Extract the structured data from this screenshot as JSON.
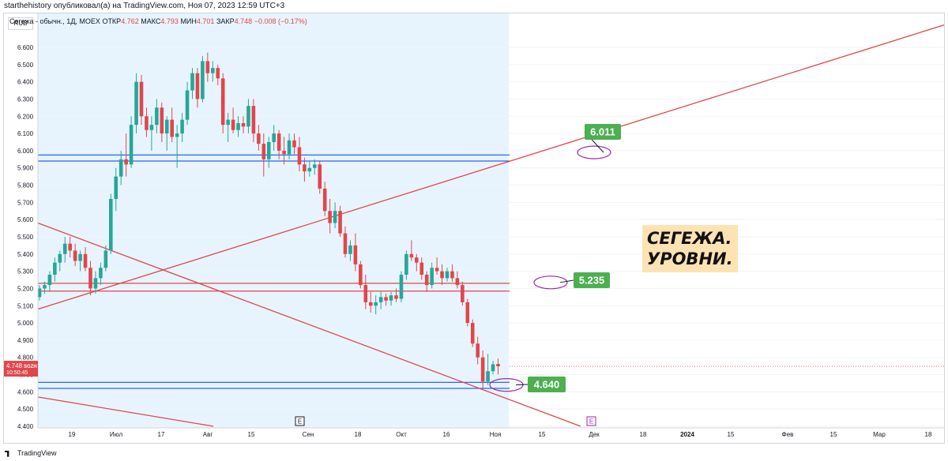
{
  "header": {
    "publisher": "starthehistory опубликовал(а) на TradingView.com, Ноя 07, 2023 12:59 UTC+3"
  },
  "legend": {
    "symbol": "Сегежа - обычн., 1Д, MOEX",
    "open_label": "ОТКР",
    "open": "4.762",
    "high_label": "МАКС",
    "high": "4.793",
    "low_label": "МИН",
    "low": "4.701",
    "close_label": "ЗАКР",
    "close": "4.748",
    "change": "−0.008 (−0.17%)"
  },
  "currency": "RUB",
  "footer": {
    "brand": "TradingView"
  },
  "overlay": {
    "line1": "СЕГЕЖА.",
    "line2": "УРОВНИ."
  },
  "colors": {
    "up": "#26a69a",
    "down": "#e0464c",
    "trendline": "#e0464c",
    "level_blue": "#2962ff",
    "level_red": "#e0464c",
    "label_green": "#4caf50",
    "shade": "#e3f2fd",
    "marker": "#9c27b0"
  },
  "chart_data": {
    "type": "candlestick",
    "currency": "RUB",
    "ylim": [
      4.4,
      6.7
    ],
    "y_ticks": [
      "6.600",
      "6.500",
      "6.400",
      "6.300",
      "6.200",
      "6.100",
      "6.000",
      "5.900",
      "5.800",
      "5.700",
      "5.600",
      "5.500",
      "5.400",
      "5.300",
      "5.200",
      "5.100",
      "5.000",
      "4.900",
      "4.800",
      "4.700",
      "4.600",
      "4.500",
      "4.400"
    ],
    "x_ticks": [
      "19",
      "Июл",
      "17",
      "Авг",
      "15",
      "Сен",
      "18",
      "Окт",
      "16",
      "Ноя",
      "15",
      "Дек",
      "18",
      "2024",
      "15",
      "Фев",
      "15",
      "Мар",
      "18"
    ],
    "price_label": {
      "value": "4.748",
      "ticker": "SGZH",
      "time": "10:50:45"
    },
    "level_labels": [
      "6.011",
      "5.235",
      "4.640"
    ],
    "horizontal_levels": [
      {
        "price": 5.975,
        "color": "blue"
      },
      {
        "price": 5.94,
        "color": "blue"
      },
      {
        "price": 5.23,
        "color": "red"
      },
      {
        "price": 5.185,
        "color": "red"
      },
      {
        "price": 4.655,
        "color": "blue"
      },
      {
        "price": 4.62,
        "color": "blue"
      }
    ],
    "event_markers": [
      "E",
      "E"
    ],
    "ohlc": [
      [
        5.15,
        5.22,
        5.13,
        5.2
      ],
      [
        5.2,
        5.24,
        5.17,
        5.22
      ],
      [
        5.22,
        5.3,
        5.18,
        5.28
      ],
      [
        5.28,
        5.38,
        5.24,
        5.35
      ],
      [
        5.35,
        5.42,
        5.3,
        5.4
      ],
      [
        5.4,
        5.5,
        5.35,
        5.46
      ],
      [
        5.46,
        5.5,
        5.38,
        5.42
      ],
      [
        5.42,
        5.46,
        5.33,
        5.36
      ],
      [
        5.36,
        5.42,
        5.3,
        5.4
      ],
      [
        5.4,
        5.44,
        5.3,
        5.32
      ],
      [
        5.32,
        5.36,
        5.16,
        5.2
      ],
      [
        5.2,
        5.3,
        5.17,
        5.26
      ],
      [
        5.26,
        5.35,
        5.22,
        5.32
      ],
      [
        5.32,
        5.45,
        5.3,
        5.42
      ],
      [
        5.42,
        5.75,
        5.4,
        5.72
      ],
      [
        5.72,
        5.9,
        5.65,
        5.85
      ],
      [
        5.85,
        6.0,
        5.8,
        5.95
      ],
      [
        5.95,
        6.1,
        5.85,
        5.92
      ],
      [
        5.92,
        6.2,
        5.9,
        6.15
      ],
      [
        6.15,
        6.45,
        6.1,
        6.4
      ],
      [
        6.4,
        6.44,
        6.15,
        6.2
      ],
      [
        6.2,
        6.25,
        6.08,
        6.12
      ],
      [
        6.12,
        6.2,
        6.0,
        6.15
      ],
      [
        6.15,
        6.3,
        6.1,
        6.25
      ],
      [
        6.25,
        6.28,
        6.05,
        6.1
      ],
      [
        6.1,
        6.2,
        6.0,
        6.18
      ],
      [
        6.18,
        6.25,
        6.05,
        6.08
      ],
      [
        6.08,
        6.15,
        5.9,
        6.1
      ],
      [
        6.1,
        6.22,
        6.05,
        6.18
      ],
      [
        6.18,
        6.4,
        6.15,
        6.35
      ],
      [
        6.35,
        6.48,
        6.3,
        6.45
      ],
      [
        6.45,
        6.48,
        6.25,
        6.3
      ],
      [
        6.3,
        6.55,
        6.28,
        6.52
      ],
      [
        6.52,
        6.57,
        6.4,
        6.45
      ],
      [
        6.45,
        6.52,
        6.4,
        6.48
      ],
      [
        6.48,
        6.5,
        6.38,
        6.42
      ],
      [
        6.42,
        6.45,
        6.1,
        6.15
      ],
      [
        6.15,
        6.22,
        6.05,
        6.18
      ],
      [
        6.18,
        6.25,
        6.1,
        6.12
      ],
      [
        6.12,
        6.2,
        6.08,
        6.16
      ],
      [
        6.16,
        6.2,
        6.1,
        6.14
      ],
      [
        6.14,
        6.3,
        6.1,
        6.26
      ],
      [
        6.26,
        6.3,
        6.05,
        6.1
      ],
      [
        6.1,
        6.15,
        6.0,
        6.04
      ],
      [
        6.04,
        6.1,
        5.85,
        5.95
      ],
      [
        5.95,
        6.08,
        5.9,
        6.05
      ],
      [
        6.05,
        6.15,
        6.0,
        6.1
      ],
      [
        6.1,
        6.12,
        5.95,
        6.0
      ],
      [
        6.0,
        6.08,
        5.92,
        5.98
      ],
      [
        5.98,
        6.1,
        5.95,
        6.06
      ],
      [
        6.06,
        6.1,
        5.98,
        6.02
      ],
      [
        6.02,
        6.08,
        5.88,
        5.92
      ],
      [
        5.92,
        5.96,
        5.82,
        5.88
      ],
      [
        5.88,
        5.94,
        5.85,
        5.9
      ],
      [
        5.9,
        5.95,
        5.86,
        5.92
      ],
      [
        5.92,
        5.94,
        5.75,
        5.78
      ],
      [
        5.78,
        5.82,
        5.62,
        5.65
      ],
      [
        5.65,
        5.72,
        5.52,
        5.58
      ],
      [
        5.58,
        5.7,
        5.55,
        5.65
      ],
      [
        5.65,
        5.68,
        5.5,
        5.52
      ],
      [
        5.52,
        5.56,
        5.38,
        5.4
      ],
      [
        5.4,
        5.48,
        5.36,
        5.45
      ],
      [
        5.45,
        5.52,
        5.3,
        5.34
      ],
      [
        5.34,
        5.36,
        5.2,
        5.22
      ],
      [
        5.22,
        5.28,
        5.08,
        5.12
      ],
      [
        5.12,
        5.18,
        5.06,
        5.1
      ],
      [
        5.1,
        5.16,
        5.05,
        5.12
      ],
      [
        5.12,
        5.18,
        5.08,
        5.15
      ],
      [
        5.15,
        5.17,
        5.1,
        5.13
      ],
      [
        5.13,
        5.18,
        5.1,
        5.16
      ],
      [
        5.16,
        5.2,
        5.12,
        5.14
      ],
      [
        5.14,
        5.3,
        5.12,
        5.28
      ],
      [
        5.28,
        5.42,
        5.25,
        5.4
      ],
      [
        5.4,
        5.48,
        5.36,
        5.38
      ],
      [
        5.38,
        5.4,
        5.3,
        5.35
      ],
      [
        5.35,
        5.38,
        5.25,
        5.28
      ],
      [
        5.28,
        5.3,
        5.18,
        5.22
      ],
      [
        5.22,
        5.35,
        5.2,
        5.32
      ],
      [
        5.32,
        5.38,
        5.28,
        5.3
      ],
      [
        5.3,
        5.34,
        5.22,
        5.26
      ],
      [
        5.26,
        5.32,
        5.24,
        5.3
      ],
      [
        5.3,
        5.34,
        5.24,
        5.26
      ],
      [
        5.26,
        5.3,
        5.2,
        5.22
      ],
      [
        5.22,
        5.24,
        5.1,
        5.12
      ],
      [
        5.12,
        5.14,
        4.98,
        5.0
      ],
      [
        5.0,
        5.02,
        4.86,
        4.88
      ],
      [
        4.88,
        4.92,
        4.76,
        4.8
      ],
      [
        4.8,
        4.84,
        4.62,
        4.66
      ],
      [
        4.66,
        4.82,
        4.64,
        4.72
      ],
      [
        4.72,
        4.78,
        4.7,
        4.76
      ],
      [
        4.762,
        4.793,
        4.701,
        4.748
      ]
    ]
  }
}
